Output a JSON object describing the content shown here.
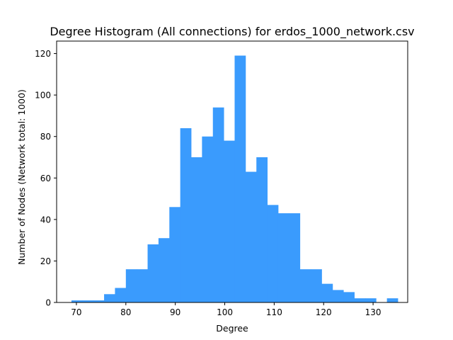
{
  "chart_data": {
    "type": "bar",
    "title": "Degree Histogram (All connections) for erdos_1000_network.csv",
    "xlabel": "Degree",
    "ylabel": "Number of Nodes (Network total: 1000)",
    "xlim": [
      66,
      137
    ],
    "ylim": [
      0,
      126
    ],
    "xticks": [
      70,
      80,
      90,
      100,
      110,
      120,
      130
    ],
    "yticks": [
      0,
      20,
      40,
      60,
      80,
      100,
      120
    ],
    "bar_color": "#3a9bfd",
    "grid": false,
    "bins": [
      {
        "x0": 69.0,
        "x1": 71.2,
        "value": 1
      },
      {
        "x0": 71.2,
        "x1": 73.4,
        "value": 1
      },
      {
        "x0": 73.4,
        "x1": 75.6,
        "value": 1
      },
      {
        "x0": 75.6,
        "x1": 77.8,
        "value": 4
      },
      {
        "x0": 77.8,
        "x1": 80.0,
        "value": 7
      },
      {
        "x0": 80.0,
        "x1": 82.2,
        "value": 16
      },
      {
        "x0": 82.2,
        "x1": 84.4,
        "value": 16
      },
      {
        "x0": 84.4,
        "x1": 86.6,
        "value": 28
      },
      {
        "x0": 86.6,
        "x1": 88.8,
        "value": 31
      },
      {
        "x0": 88.8,
        "x1": 91.0,
        "value": 46
      },
      {
        "x0": 91.0,
        "x1": 93.2,
        "value": 84
      },
      {
        "x0": 93.2,
        "x1": 95.4,
        "value": 70
      },
      {
        "x0": 95.4,
        "x1": 97.6,
        "value": 80
      },
      {
        "x0": 97.6,
        "x1": 99.8,
        "value": 94
      },
      {
        "x0": 99.8,
        "x1": 102.0,
        "value": 78
      },
      {
        "x0": 102.0,
        "x1": 104.2,
        "value": 119
      },
      {
        "x0": 104.2,
        "x1": 106.4,
        "value": 63
      },
      {
        "x0": 106.4,
        "x1": 108.6,
        "value": 70
      },
      {
        "x0": 108.6,
        "x1": 110.8,
        "value": 47
      },
      {
        "x0": 110.8,
        "x1": 113.0,
        "value": 43
      },
      {
        "x0": 113.0,
        "x1": 115.2,
        "value": 43
      },
      {
        "x0": 115.2,
        "x1": 117.4,
        "value": 16
      },
      {
        "x0": 117.4,
        "x1": 119.6,
        "value": 16
      },
      {
        "x0": 119.6,
        "x1": 121.8,
        "value": 9
      },
      {
        "x0": 121.8,
        "x1": 124.0,
        "value": 6
      },
      {
        "x0": 124.0,
        "x1": 126.2,
        "value": 5
      },
      {
        "x0": 126.2,
        "x1": 128.4,
        "value": 2
      },
      {
        "x0": 128.4,
        "x1": 130.6,
        "value": 2
      },
      {
        "x0": 130.6,
        "x1": 132.8,
        "value": 0
      },
      {
        "x0": 132.8,
        "x1": 135.0,
        "value": 2
      }
    ]
  }
}
